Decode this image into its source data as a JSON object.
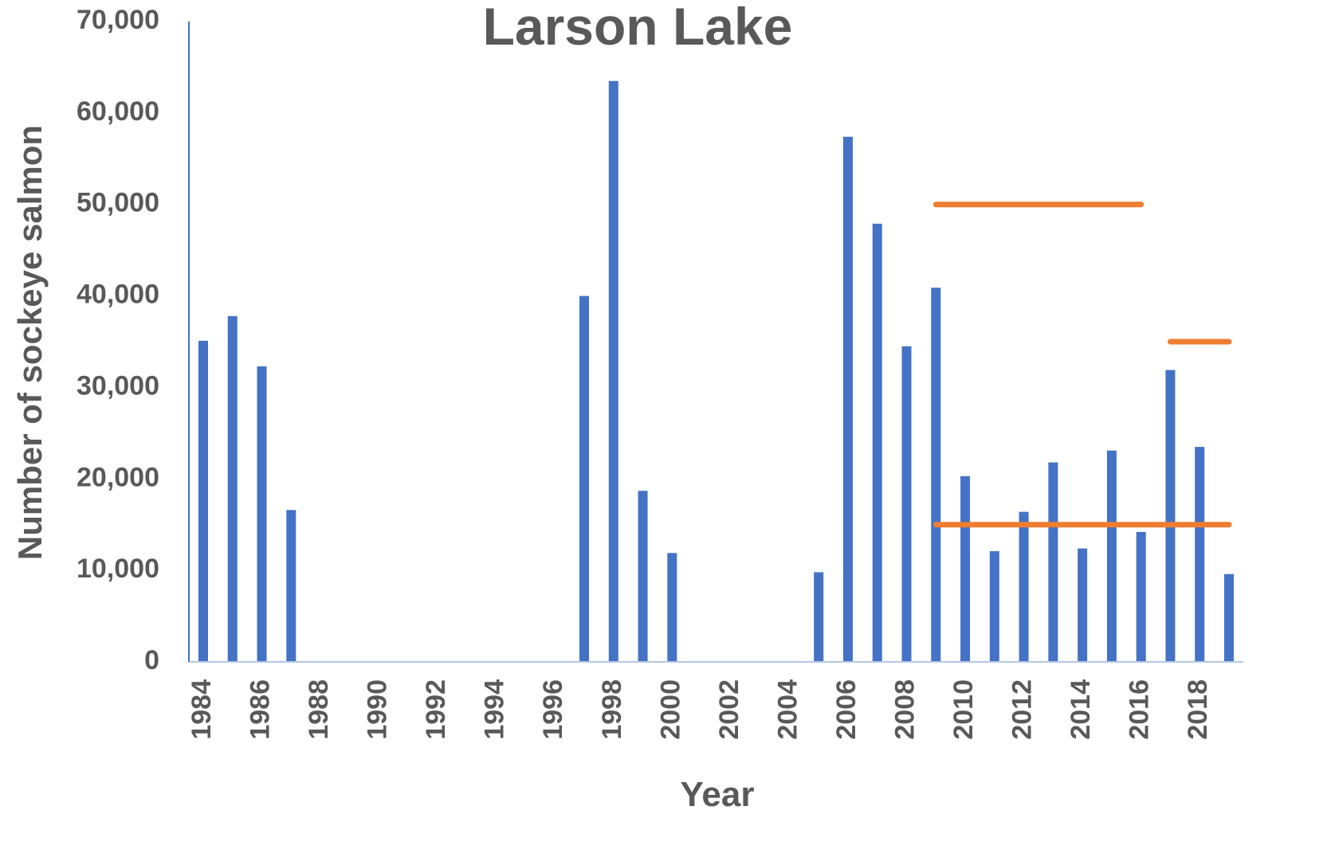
{
  "chart_data": {
    "type": "bar",
    "title": "Larson Lake",
    "x_label": "Year",
    "y_label": "Number of sockeye salmon",
    "categories": [
      "1984",
      null,
      "1986",
      null,
      "1988",
      null,
      "1990",
      null,
      "1992",
      null,
      "1994",
      null,
      "1996",
      null,
      "1998",
      null,
      "2000",
      null,
      "2002",
      null,
      "2004",
      null,
      "2006",
      null,
      "2008",
      null,
      "2010",
      null,
      "2012",
      null,
      "2014",
      null,
      "2016",
      null,
      "2018",
      null
    ],
    "series": [
      {
        "type": "bar",
        "color": "#4472c4",
        "values": [
          35100,
          37800,
          32300,
          16600,
          null,
          null,
          null,
          null,
          null,
          null,
          null,
          null,
          null,
          40000,
          63500,
          18700,
          11900,
          null,
          null,
          null,
          null,
          9800,
          57400,
          47900,
          34500,
          40900,
          20300,
          12100,
          16400,
          21800,
          12400,
          23100,
          14200,
          31900,
          23500,
          9600
        ]
      },
      {
        "type": "line",
        "color": "#ed7d31",
        "values": [
          null,
          null,
          null,
          null,
          null,
          null,
          null,
          null,
          null,
          null,
          null,
          null,
          null,
          null,
          null,
          null,
          null,
          null,
          null,
          null,
          null,
          null,
          null,
          null,
          null,
          50000,
          50000,
          50000,
          50000,
          50000,
          50000,
          50000,
          50000,
          null,
          null,
          null
        ]
      },
      {
        "type": "line",
        "color": "#ed7d31",
        "values": [
          null,
          null,
          null,
          null,
          null,
          null,
          null,
          null,
          null,
          null,
          null,
          null,
          null,
          null,
          null,
          null,
          null,
          null,
          null,
          null,
          null,
          null,
          null,
          null,
          null,
          null,
          null,
          null,
          null,
          null,
          null,
          null,
          null,
          35000,
          35000,
          35000
        ]
      },
      {
        "type": "line",
        "color": "#ed7d31",
        "values": [
          null,
          null,
          null,
          null,
          null,
          null,
          null,
          null,
          null,
          null,
          null,
          null,
          null,
          null,
          null,
          null,
          null,
          null,
          null,
          null,
          null,
          null,
          null,
          null,
          null,
          15000,
          15000,
          15000,
          15000,
          15000,
          15000,
          15000,
          15000,
          15000,
          15000,
          15000
        ]
      }
    ],
    "ylim": [
      0,
      70000
    ],
    "yticks": [
      0,
      {
        "value": 10000,
        "label": "10,000"
      },
      {
        "value": 20000,
        "label": "20,000"
      },
      {
        "value": 30000,
        "label": "30,000"
      },
      {
        "value": 40000,
        "label": "40,000"
      },
      {
        "value": 50000,
        "label": "50,000"
      },
      {
        "value": 60000,
        "label": "60,000"
      },
      {
        "value": 70000,
        "label": "70,000"
      }
    ],
    "grid": false
  }
}
